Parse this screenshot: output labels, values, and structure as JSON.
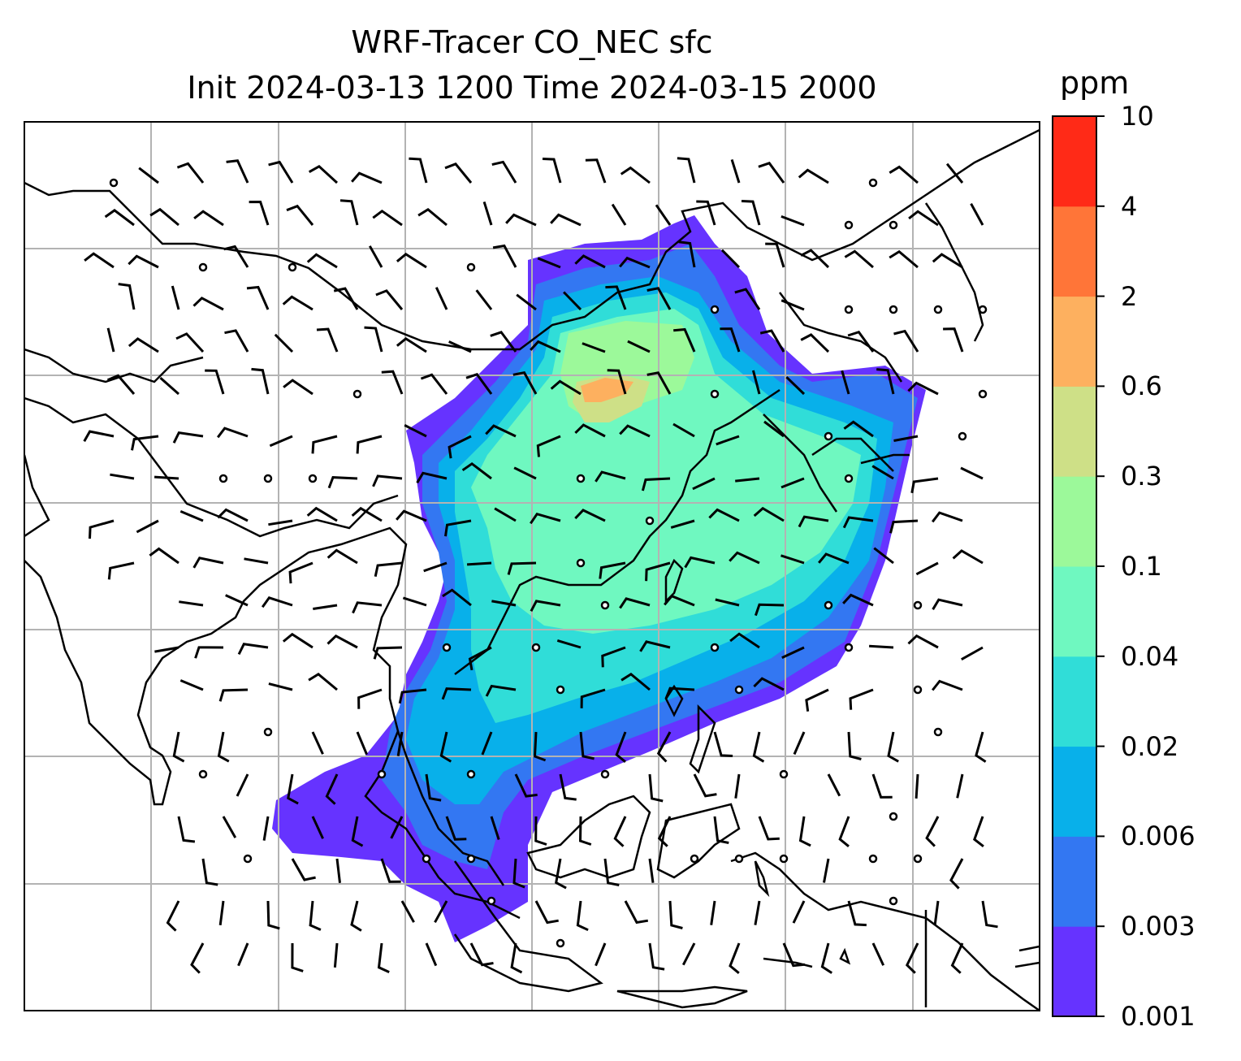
{
  "title_line1": "WRF-Tracer CO_NEC sfc",
  "title_line2": "Init 2024-03-13 1200 Time 2024-03-15 2000",
  "colorbar": {
    "unit": "ppm",
    "levels": [
      "0.001",
      "0.003",
      "0.006",
      "0.02",
      "0.04",
      "0.1",
      "0.3",
      "0.6",
      "2",
      "4",
      "10"
    ],
    "colors": [
      "#6633ff",
      "#3377f2",
      "#08b0ea",
      "#30ddd8",
      "#6ff8c0",
      "#9cf99a",
      "#cee087",
      "#fdb05f",
      "#ff7538",
      "#ff2a17"
    ]
  },
  "map": {
    "gridlines": true,
    "gridline_color": "#b3b3b3",
    "coastline_color": "#000000",
    "wind_barbs": true,
    "field": "CO_NEC tracer concentration (surface)"
  }
}
